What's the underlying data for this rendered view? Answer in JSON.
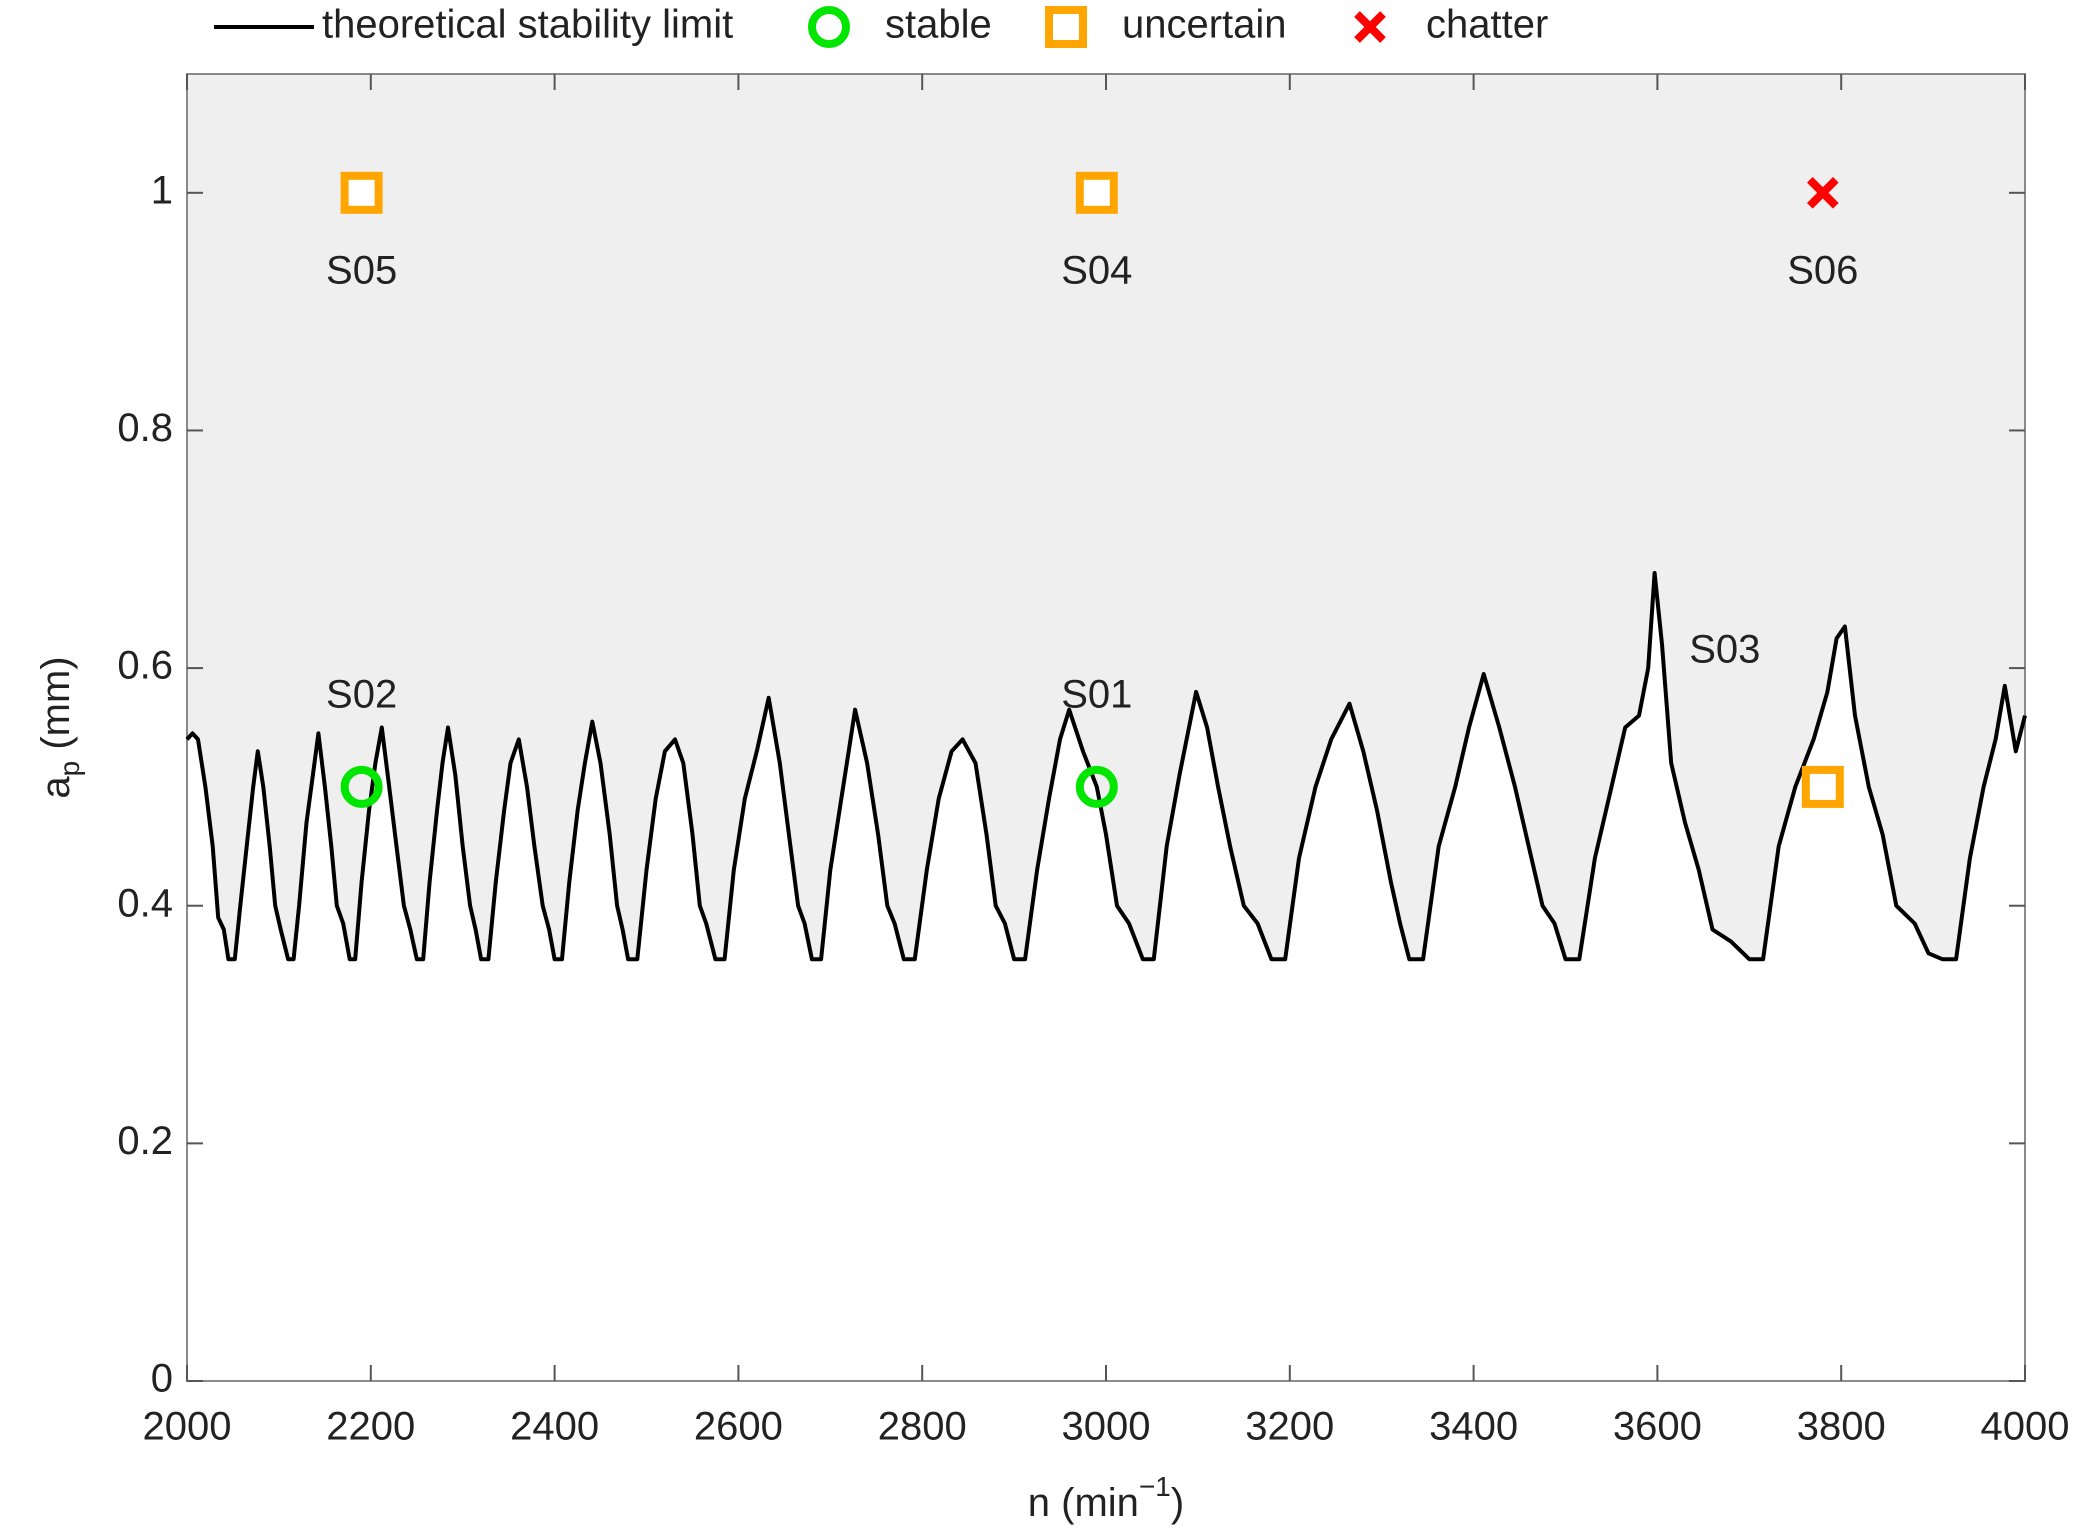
{
  "chart_data": {
    "type": "line",
    "xlabel": [
      "n (min",
      "−1",
      ")"
    ],
    "ylabel": [
      "a",
      "p",
      " (mm)"
    ],
    "xlim": [
      2000,
      4000
    ],
    "ylim": [
      0,
      1.1
    ],
    "xticks": [
      2000,
      2200,
      2400,
      2600,
      2800,
      3000,
      3200,
      3400,
      3600,
      3800,
      4000
    ],
    "yticks": [
      0,
      0.2,
      0.4,
      0.6,
      0.8,
      1
    ],
    "grid": false,
    "legend": "top",
    "region_color": "#efefef",
    "series": [
      {
        "name": "theoretical stability limit",
        "color": "#000000",
        "marker": "line",
        "x": [
          2000,
          2006,
          2012,
          2020,
          2028,
          2034,
          2040,
          2045,
          2052,
          2058,
          2065,
          2072,
          2077,
          2083,
          2090,
          2096,
          2102,
          2110,
          2116,
          2122,
          2130,
          2137,
          2143,
          2150,
          2157,
          2163,
          2170,
          2177,
          2183,
          2190,
          2198,
          2205,
          2212,
          2220,
          2228,
          2236,
          2243,
          2250,
          2257,
          2264,
          2272,
          2278,
          2284,
          2292,
          2300,
          2308,
          2314,
          2320,
          2328,
          2336,
          2345,
          2352,
          2361,
          2370,
          2378,
          2387,
          2394,
          2400,
          2408,
          2416,
          2425,
          2433,
          2441,
          2450,
          2460,
          2468,
          2474,
          2480,
          2490,
          2500,
          2510,
          2520,
          2531,
          2540,
          2550,
          2558,
          2565,
          2575,
          2585,
          2595,
          2607,
          2620,
          2633,
          2645,
          2655,
          2665,
          2672,
          2680,
          2690,
          2700,
          2712,
          2720,
          2727,
          2740,
          2752,
          2762,
          2770,
          2780,
          2792,
          2805,
          2818,
          2832,
          2844,
          2858,
          2870,
          2880,
          2890,
          2900,
          2912,
          2925,
          2938,
          2950,
          2960,
          2975,
          2990,
          3000,
          3012,
          3025,
          3040,
          3052,
          3066,
          3080,
          3098,
          3110,
          3122,
          3135,
          3150,
          3165,
          3180,
          3195,
          3210,
          3228,
          3245,
          3265,
          3280,
          3295,
          3310,
          3320,
          3330,
          3345,
          3362,
          3380,
          3395,
          3411,
          3428,
          3445,
          3460,
          3475,
          3488,
          3500,
          3515,
          3532,
          3550,
          3565,
          3580,
          3590,
          3597,
          3605,
          3615,
          3630,
          3645,
          3660,
          3680,
          3700,
          3715,
          3732,
          3750,
          3770,
          3785,
          3795,
          3804,
          3815,
          3830,
          3845,
          3860,
          3880,
          3895,
          3910,
          3925,
          3940,
          3955,
          3968,
          3978,
          3990,
          4000
        ],
        "values": [
          0.54,
          0.545,
          0.54,
          0.5,
          0.45,
          0.39,
          0.38,
          0.355,
          0.355,
          0.4,
          0.45,
          0.5,
          0.53,
          0.5,
          0.45,
          0.4,
          0.38,
          0.355,
          0.355,
          0.4,
          0.47,
          0.51,
          0.545,
          0.5,
          0.45,
          0.4,
          0.385,
          0.355,
          0.355,
          0.42,
          0.48,
          0.52,
          0.55,
          0.5,
          0.45,
          0.4,
          0.38,
          0.355,
          0.355,
          0.42,
          0.48,
          0.52,
          0.55,
          0.51,
          0.45,
          0.4,
          0.38,
          0.355,
          0.355,
          0.42,
          0.48,
          0.52,
          0.54,
          0.5,
          0.45,
          0.4,
          0.38,
          0.355,
          0.355,
          0.42,
          0.48,
          0.52,
          0.555,
          0.52,
          0.46,
          0.4,
          0.38,
          0.355,
          0.355,
          0.43,
          0.49,
          0.53,
          0.54,
          0.52,
          0.46,
          0.4,
          0.385,
          0.355,
          0.355,
          0.43,
          0.49,
          0.53,
          0.575,
          0.52,
          0.46,
          0.4,
          0.385,
          0.355,
          0.355,
          0.43,
          0.49,
          0.53,
          0.565,
          0.52,
          0.46,
          0.4,
          0.385,
          0.355,
          0.355,
          0.43,
          0.49,
          0.53,
          0.54,
          0.52,
          0.46,
          0.4,
          0.385,
          0.355,
          0.355,
          0.43,
          0.49,
          0.54,
          0.565,
          0.53,
          0.5,
          0.46,
          0.4,
          0.385,
          0.355,
          0.355,
          0.45,
          0.51,
          0.58,
          0.55,
          0.5,
          0.45,
          0.4,
          0.385,
          0.355,
          0.355,
          0.44,
          0.5,
          0.54,
          0.57,
          0.53,
          0.48,
          0.42,
          0.385,
          0.355,
          0.355,
          0.45,
          0.5,
          0.55,
          0.595,
          0.55,
          0.5,
          0.45,
          0.4,
          0.385,
          0.355,
          0.355,
          0.44,
          0.5,
          0.55,
          0.56,
          0.6,
          0.68,
          0.62,
          0.52,
          0.47,
          0.43,
          0.38,
          0.37,
          0.355,
          0.355,
          0.45,
          0.5,
          0.54,
          0.58,
          0.625,
          0.635,
          0.56,
          0.5,
          0.46,
          0.4,
          0.385,
          0.36,
          0.355,
          0.355,
          0.44,
          0.5,
          0.54,
          0.585,
          0.53,
          0.56
        ]
      },
      {
        "name": "stable",
        "color": "#00e600",
        "marker": "circle",
        "x": [
          2190,
          2990
        ],
        "values": [
          0.5,
          0.5
        ],
        "labels": [
          "S02",
          "S01"
        ]
      },
      {
        "name": "uncertain",
        "color": "#ffa500",
        "marker": "square",
        "x": [
          2190,
          2990,
          3780
        ],
        "values": [
          1,
          1,
          0.5
        ],
        "labels": [
          "S05",
          "S04",
          "S03"
        ]
      },
      {
        "name": "chatter",
        "color": "#ff0000",
        "marker": "x",
        "x": [
          3780
        ],
        "values": [
          1
        ],
        "labels": [
          "S06"
        ]
      }
    ]
  }
}
